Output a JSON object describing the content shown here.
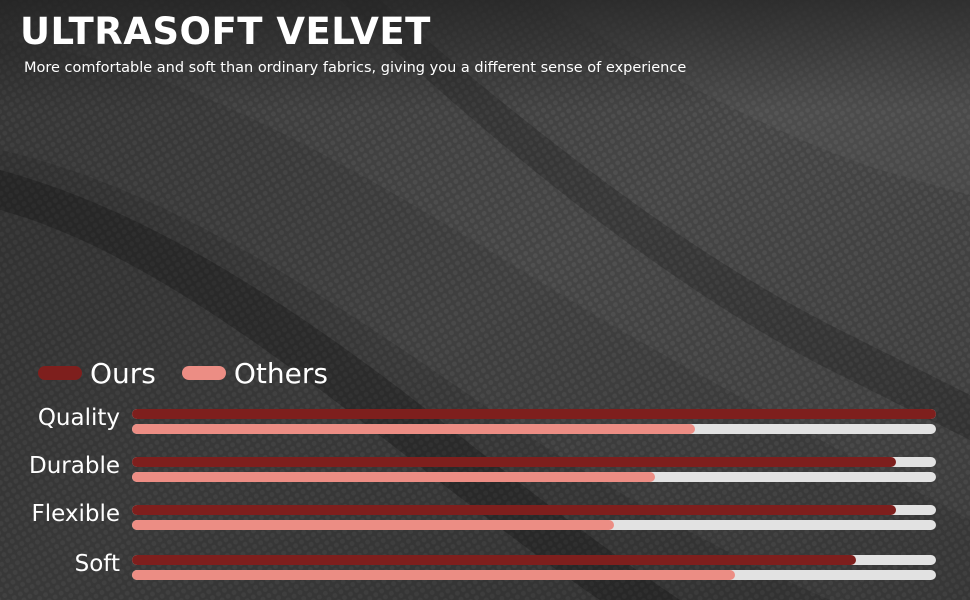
{
  "header": {
    "title": "ULTRASOFT VELVET",
    "subtitle": "More comfortable and soft than ordinary fabrics, giving you a different sense of experience"
  },
  "colors": {
    "ours": "#7e1f1d",
    "others": "#ec8d84",
    "track": "#e2e2e2",
    "background": "#474747"
  },
  "chart_data": {
    "type": "bar",
    "orientation": "horizontal",
    "categories": [
      "Quality",
      "Durable",
      "Flexible",
      "Soft"
    ],
    "series": [
      {
        "name": "Ours",
        "values": [
          100,
          95,
          95,
          90
        ]
      },
      {
        "name": "Others",
        "values": [
          70,
          65,
          60,
          75
        ]
      }
    ],
    "xlim": [
      0,
      100
    ],
    "legend_position": "top-left",
    "grid": false
  }
}
